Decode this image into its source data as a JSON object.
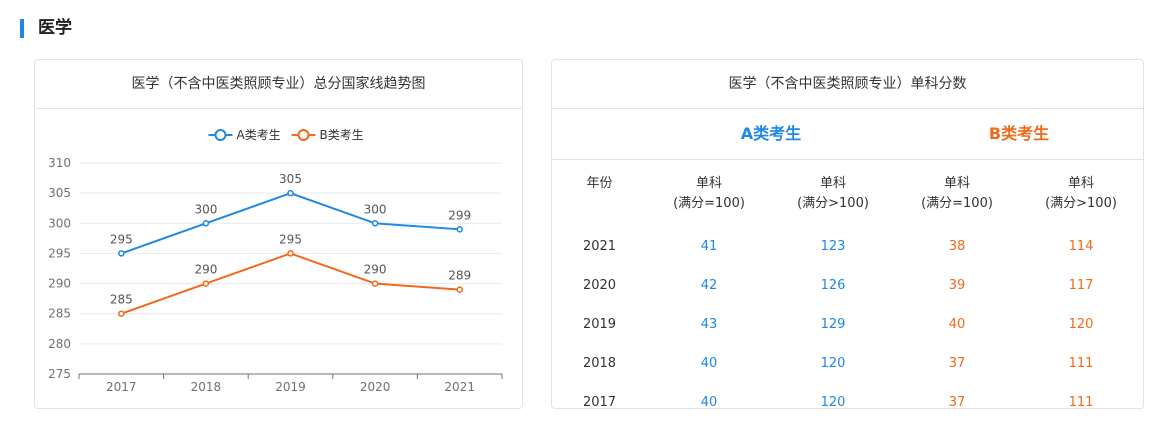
{
  "section": {
    "title": "医学"
  },
  "chart_card": {
    "title": "医学（不含中医类照顾专业）总分国家线趋势图"
  },
  "table_card": {
    "title": "医学（不含中医类照顾专业）单科分数",
    "group_a": "A类考生",
    "group_b": "B类考生",
    "header_year": "年份",
    "header_cols": [
      {
        "l1": "单科",
        "l2": "(满分=100)"
      },
      {
        "l1": "单科",
        "l2": "(满分>100)"
      },
      {
        "l1": "单科",
        "l2": "(满分=100)"
      },
      {
        "l1": "单科",
        "l2": "(满分>100)"
      }
    ],
    "rows": [
      {
        "year": "2021",
        "a1": "41",
        "a2": "123",
        "b1": "38",
        "b2": "114"
      },
      {
        "year": "2020",
        "a1": "42",
        "a2": "126",
        "b1": "39",
        "b2": "117"
      },
      {
        "year": "2019",
        "a1": "43",
        "a2": "129",
        "b1": "40",
        "b2": "120"
      },
      {
        "year": "2018",
        "a1": "40",
        "a2": "120",
        "b1": "37",
        "b2": "111"
      },
      {
        "year": "2017",
        "a1": "40",
        "a2": "120",
        "b1": "37",
        "b2": "111"
      }
    ]
  },
  "colors": {
    "a": "#1e88e5",
    "b": "#f06a1a",
    "grid": "#e6e9f0",
    "axis": "#6e7079",
    "label": "#555555"
  },
  "chart_data": {
    "type": "line",
    "categories": [
      "2017",
      "2018",
      "2019",
      "2020",
      "2021"
    ],
    "series": [
      {
        "name": "A类考生",
        "values": [
          295,
          300,
          305,
          300,
          299
        ]
      },
      {
        "name": "B类考生",
        "values": [
          285,
          290,
          295,
          290,
          289
        ]
      }
    ],
    "ylim": [
      275,
      310
    ],
    "yticks": [
      275,
      280,
      285,
      290,
      295,
      300,
      305,
      310
    ],
    "legend": "top-center",
    "grid": true
  }
}
